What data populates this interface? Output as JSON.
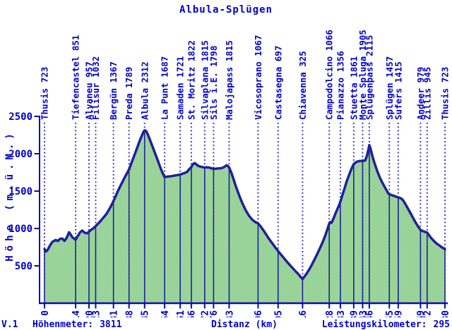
{
  "chart_data": {
    "type": "area",
    "title": "Albula-Splügen",
    "xlabel": "Distanz (km)",
    "ylabel": "Höhe (m.ü.M.)",
    "xlim": [
      0,
      180
    ],
    "ylim": [
      0,
      2500
    ],
    "yticks": [
      500,
      1000,
      1500,
      2000,
      2500
    ],
    "grid": false,
    "legend": "none",
    "waypoints": [
      {
        "name": "Thusis",
        "km": 0,
        "elev": 723,
        "label": "Thusis 723"
      },
      {
        "name": "Tiefencastel",
        "km": 14,
        "elev": 851,
        "label": "Tiefencastel 851"
      },
      {
        "name": "Alvaneu",
        "km": 20,
        "elev": 957,
        "label": "Alvaneu 957"
      },
      {
        "name": "Filisur",
        "km": 23,
        "elev": 1032,
        "label": "Filisur 1032"
      },
      {
        "name": "Bergün",
        "km": 31,
        "elev": 1367,
        "label": "Bergün 1367"
      },
      {
        "name": "Preda",
        "km": 38,
        "elev": 1789,
        "label": "Preda 1789"
      },
      {
        "name": "Albula",
        "km": 45,
        "elev": 2312,
        "label": "Albula 2312"
      },
      {
        "name": "La Punt",
        "km": 54,
        "elev": 1687,
        "label": "La Punt 1687"
      },
      {
        "name": "Samaden",
        "km": 61,
        "elev": 1721,
        "label": "Samaden 1721"
      },
      {
        "name": "St. Moritz",
        "km": 66,
        "elev": 1822,
        "label": "St. Moritz 1822"
      },
      {
        "name": "Silvaplana",
        "km": 72,
        "elev": 1815,
        "label": "Silvaplana 1815"
      },
      {
        "name": "Sils i.E.",
        "km": 76,
        "elev": 1798,
        "label": "Sils i.E. 1798"
      },
      {
        "name": "Malojapass",
        "km": 83,
        "elev": 1815,
        "label": "Malojapass 1815"
      },
      {
        "name": "Vicosoprano",
        "km": 96,
        "elev": 1067,
        "label": "Vicosoprano 1067"
      },
      {
        "name": "Castasegna",
        "km": 105,
        "elev": 697,
        "label": "Castasegna 697"
      },
      {
        "name": "Chiavenna",
        "km": 116,
        "elev": 325,
        "label": "Chiavenna 325"
      },
      {
        "name": "Campodolcino",
        "km": 128,
        "elev": 1066,
        "label": "Campodolcino 1066"
      },
      {
        "name": "Pianazzo",
        "km": 133,
        "elev": 1356,
        "label": "Pianazzo 1356"
      },
      {
        "name": "Stuetta",
        "km": 139,
        "elev": 1861,
        "label": "Stuetta 1861"
      },
      {
        "name": "Monte Spluga",
        "km": 143,
        "elev": 1905,
        "label": "Monte Spluga 1905"
      },
      {
        "name": "Splügenpass",
        "km": 146,
        "elev": 2115,
        "label": "Splügenpass 2115"
      },
      {
        "name": "Splügen",
        "km": 155,
        "elev": 1457,
        "label": "Splügen 1457"
      },
      {
        "name": "Sufers",
        "km": 159,
        "elev": 1415,
        "label": "Sufers 1415"
      },
      {
        "name": "Andeer",
        "km": 169,
        "elev": 979,
        "label": "Andeer 979"
      },
      {
        "name": "Zillis",
        "km": 172,
        "elev": 945,
        "label": "Zillis 945"
      },
      {
        "name": "Thusis",
        "km": 180,
        "elev": 723,
        "label": "Thusis 723"
      }
    ],
    "profile": [
      [
        0,
        723
      ],
      [
        0.7,
        692
      ],
      [
        1.5,
        718
      ],
      [
        2.5,
        775
      ],
      [
        3.5,
        820
      ],
      [
        5,
        845
      ],
      [
        6,
        832
      ],
      [
        7,
        860
      ],
      [
        8,
        865
      ],
      [
        9,
        833
      ],
      [
        10,
        876
      ],
      [
        11,
        948
      ],
      [
        11.8,
        918
      ],
      [
        12.6,
        878
      ],
      [
        14,
        851
      ],
      [
        15,
        902
      ],
      [
        16,
        948
      ],
      [
        17,
        972
      ],
      [
        18,
        944
      ],
      [
        19,
        934
      ],
      [
        20,
        957
      ],
      [
        21,
        982
      ],
      [
        22,
        1004
      ],
      [
        23,
        1032
      ],
      [
        24,
        1062
      ],
      [
        25,
        1094
      ],
      [
        26,
        1128
      ],
      [
        27,
        1163
      ],
      [
        28,
        1202
      ],
      [
        29,
        1250
      ],
      [
        30,
        1306
      ],
      [
        31,
        1367
      ],
      [
        32,
        1433
      ],
      [
        33,
        1500
      ],
      [
        34,
        1562
      ],
      [
        35,
        1622
      ],
      [
        36,
        1680
      ],
      [
        37,
        1736
      ],
      [
        38,
        1789
      ],
      [
        39,
        1868
      ],
      [
        40,
        1948
      ],
      [
        41,
        2028
      ],
      [
        42,
        2108
      ],
      [
        43,
        2188
      ],
      [
        44,
        2258
      ],
      [
        44.6,
        2300
      ],
      [
        45,
        2312
      ],
      [
        45.7,
        2303
      ],
      [
        46.3,
        2268
      ],
      [
        47,
        2215
      ],
      [
        48,
        2140
      ],
      [
        49,
        2062
      ],
      [
        50,
        1982
      ],
      [
        51,
        1902
      ],
      [
        52,
        1822
      ],
      [
        53,
        1748
      ],
      [
        54,
        1687
      ],
      [
        55.5,
        1694
      ],
      [
        57,
        1700
      ],
      [
        59,
        1710
      ],
      [
        61,
        1721
      ],
      [
        62,
        1732
      ],
      [
        63,
        1742
      ],
      [
        64,
        1755
      ],
      [
        65,
        1792
      ],
      [
        66,
        1822
      ],
      [
        66.8,
        1862
      ],
      [
        67.5,
        1875
      ],
      [
        68.3,
        1858
      ],
      [
        69,
        1840
      ],
      [
        70,
        1827
      ],
      [
        71,
        1822
      ],
      [
        72,
        1815
      ],
      [
        73,
        1818
      ],
      [
        74,
        1815
      ],
      [
        75,
        1805
      ],
      [
        76,
        1798
      ],
      [
        77,
        1800
      ],
      [
        78,
        1803
      ],
      [
        79,
        1806
      ],
      [
        80,
        1810
      ],
      [
        81,
        1828
      ],
      [
        81.8,
        1845
      ],
      [
        82.4,
        1838
      ],
      [
        83,
        1815
      ],
      [
        84,
        1745
      ],
      [
        85,
        1655
      ],
      [
        86,
        1566
      ],
      [
        87,
        1483
      ],
      [
        88,
        1405
      ],
      [
        89,
        1333
      ],
      [
        90,
        1270
      ],
      [
        91,
        1216
      ],
      [
        92,
        1168
      ],
      [
        93,
        1130
      ],
      [
        94,
        1102
      ],
      [
        95,
        1082
      ],
      [
        96,
        1067
      ],
      [
        97,
        1032
      ],
      [
        98,
        992
      ],
      [
        99,
        948
      ],
      [
        100,
        903
      ],
      [
        101,
        858
      ],
      [
        102,
        817
      ],
      [
        103,
        777
      ],
      [
        104,
        736
      ],
      [
        105,
        697
      ],
      [
        106.5,
        643
      ],
      [
        108,
        590
      ],
      [
        109.5,
        538
      ],
      [
        111,
        488
      ],
      [
        112.5,
        438
      ],
      [
        114,
        392
      ],
      [
        115,
        358
      ],
      [
        116,
        325
      ],
      [
        117,
        362
      ],
      [
        118,
        405
      ],
      [
        119,
        452
      ],
      [
        120,
        505
      ],
      [
        121,
        562
      ],
      [
        122,
        622
      ],
      [
        123,
        684
      ],
      [
        124,
        748
      ],
      [
        125,
        816
      ],
      [
        126,
        890
      ],
      [
        127,
        975
      ],
      [
        128,
        1066
      ],
      [
        128.4,
        1085
      ],
      [
        129,
        1075
      ],
      [
        130,
        1140
      ],
      [
        131,
        1215
      ],
      [
        132,
        1282
      ],
      [
        133,
        1356
      ],
      [
        134,
        1455
      ],
      [
        135,
        1550
      ],
      [
        136,
        1645
      ],
      [
        137,
        1725
      ],
      [
        138,
        1800
      ],
      [
        139,
        1861
      ],
      [
        139.8,
        1882
      ],
      [
        140.6,
        1895
      ],
      [
        141.6,
        1902
      ],
      [
        143,
        1905
      ],
      [
        144.2,
        1910
      ],
      [
        145,
        1980
      ],
      [
        145.6,
        2055
      ],
      [
        146,
        2115
      ],
      [
        146.5,
        2075
      ],
      [
        147.2,
        1990
      ],
      [
        148,
        1905
      ],
      [
        149,
        1815
      ],
      [
        150,
        1735
      ],
      [
        151,
        1665
      ],
      [
        152,
        1605
      ],
      [
        153,
        1550
      ],
      [
        154,
        1498
      ],
      [
        154.5,
        1470
      ],
      [
        155,
        1457
      ],
      [
        156,
        1447
      ],
      [
        157,
        1437
      ],
      [
        158,
        1426
      ],
      [
        159,
        1415
      ],
      [
        160.3,
        1402
      ],
      [
        161,
        1385
      ],
      [
        162,
        1338
      ],
      [
        163,
        1285
      ],
      [
        164,
        1232
      ],
      [
        165,
        1178
      ],
      [
        166,
        1124
      ],
      [
        167,
        1072
      ],
      [
        168,
        1024
      ],
      [
        169,
        979
      ],
      [
        170,
        966
      ],
      [
        171,
        955
      ],
      [
        172,
        945
      ],
      [
        173,
        903
      ],
      [
        174,
        866
      ],
      [
        175,
        834
      ],
      [
        176,
        806
      ],
      [
        177,
        783
      ],
      [
        178,
        761
      ],
      [
        179,
        741
      ],
      [
        180,
        723
      ]
    ]
  },
  "status": {
    "version": "V.1",
    "hoehenmeter_label": "Höhenmeter:",
    "hoehenmeter_value": "3811",
    "leistungskilometer_label": "Leistungskilometer:",
    "leistungskilometer_value": "295"
  },
  "colors": {
    "background": "#ffffff",
    "text_blue": "#0000c8",
    "axis_blue": "#0a0ab4",
    "profile_navy": "#20209a",
    "dotted_blue": "#3c3cc8",
    "fill_green": "#34a834",
    "fill_alt": "#ffffff"
  }
}
